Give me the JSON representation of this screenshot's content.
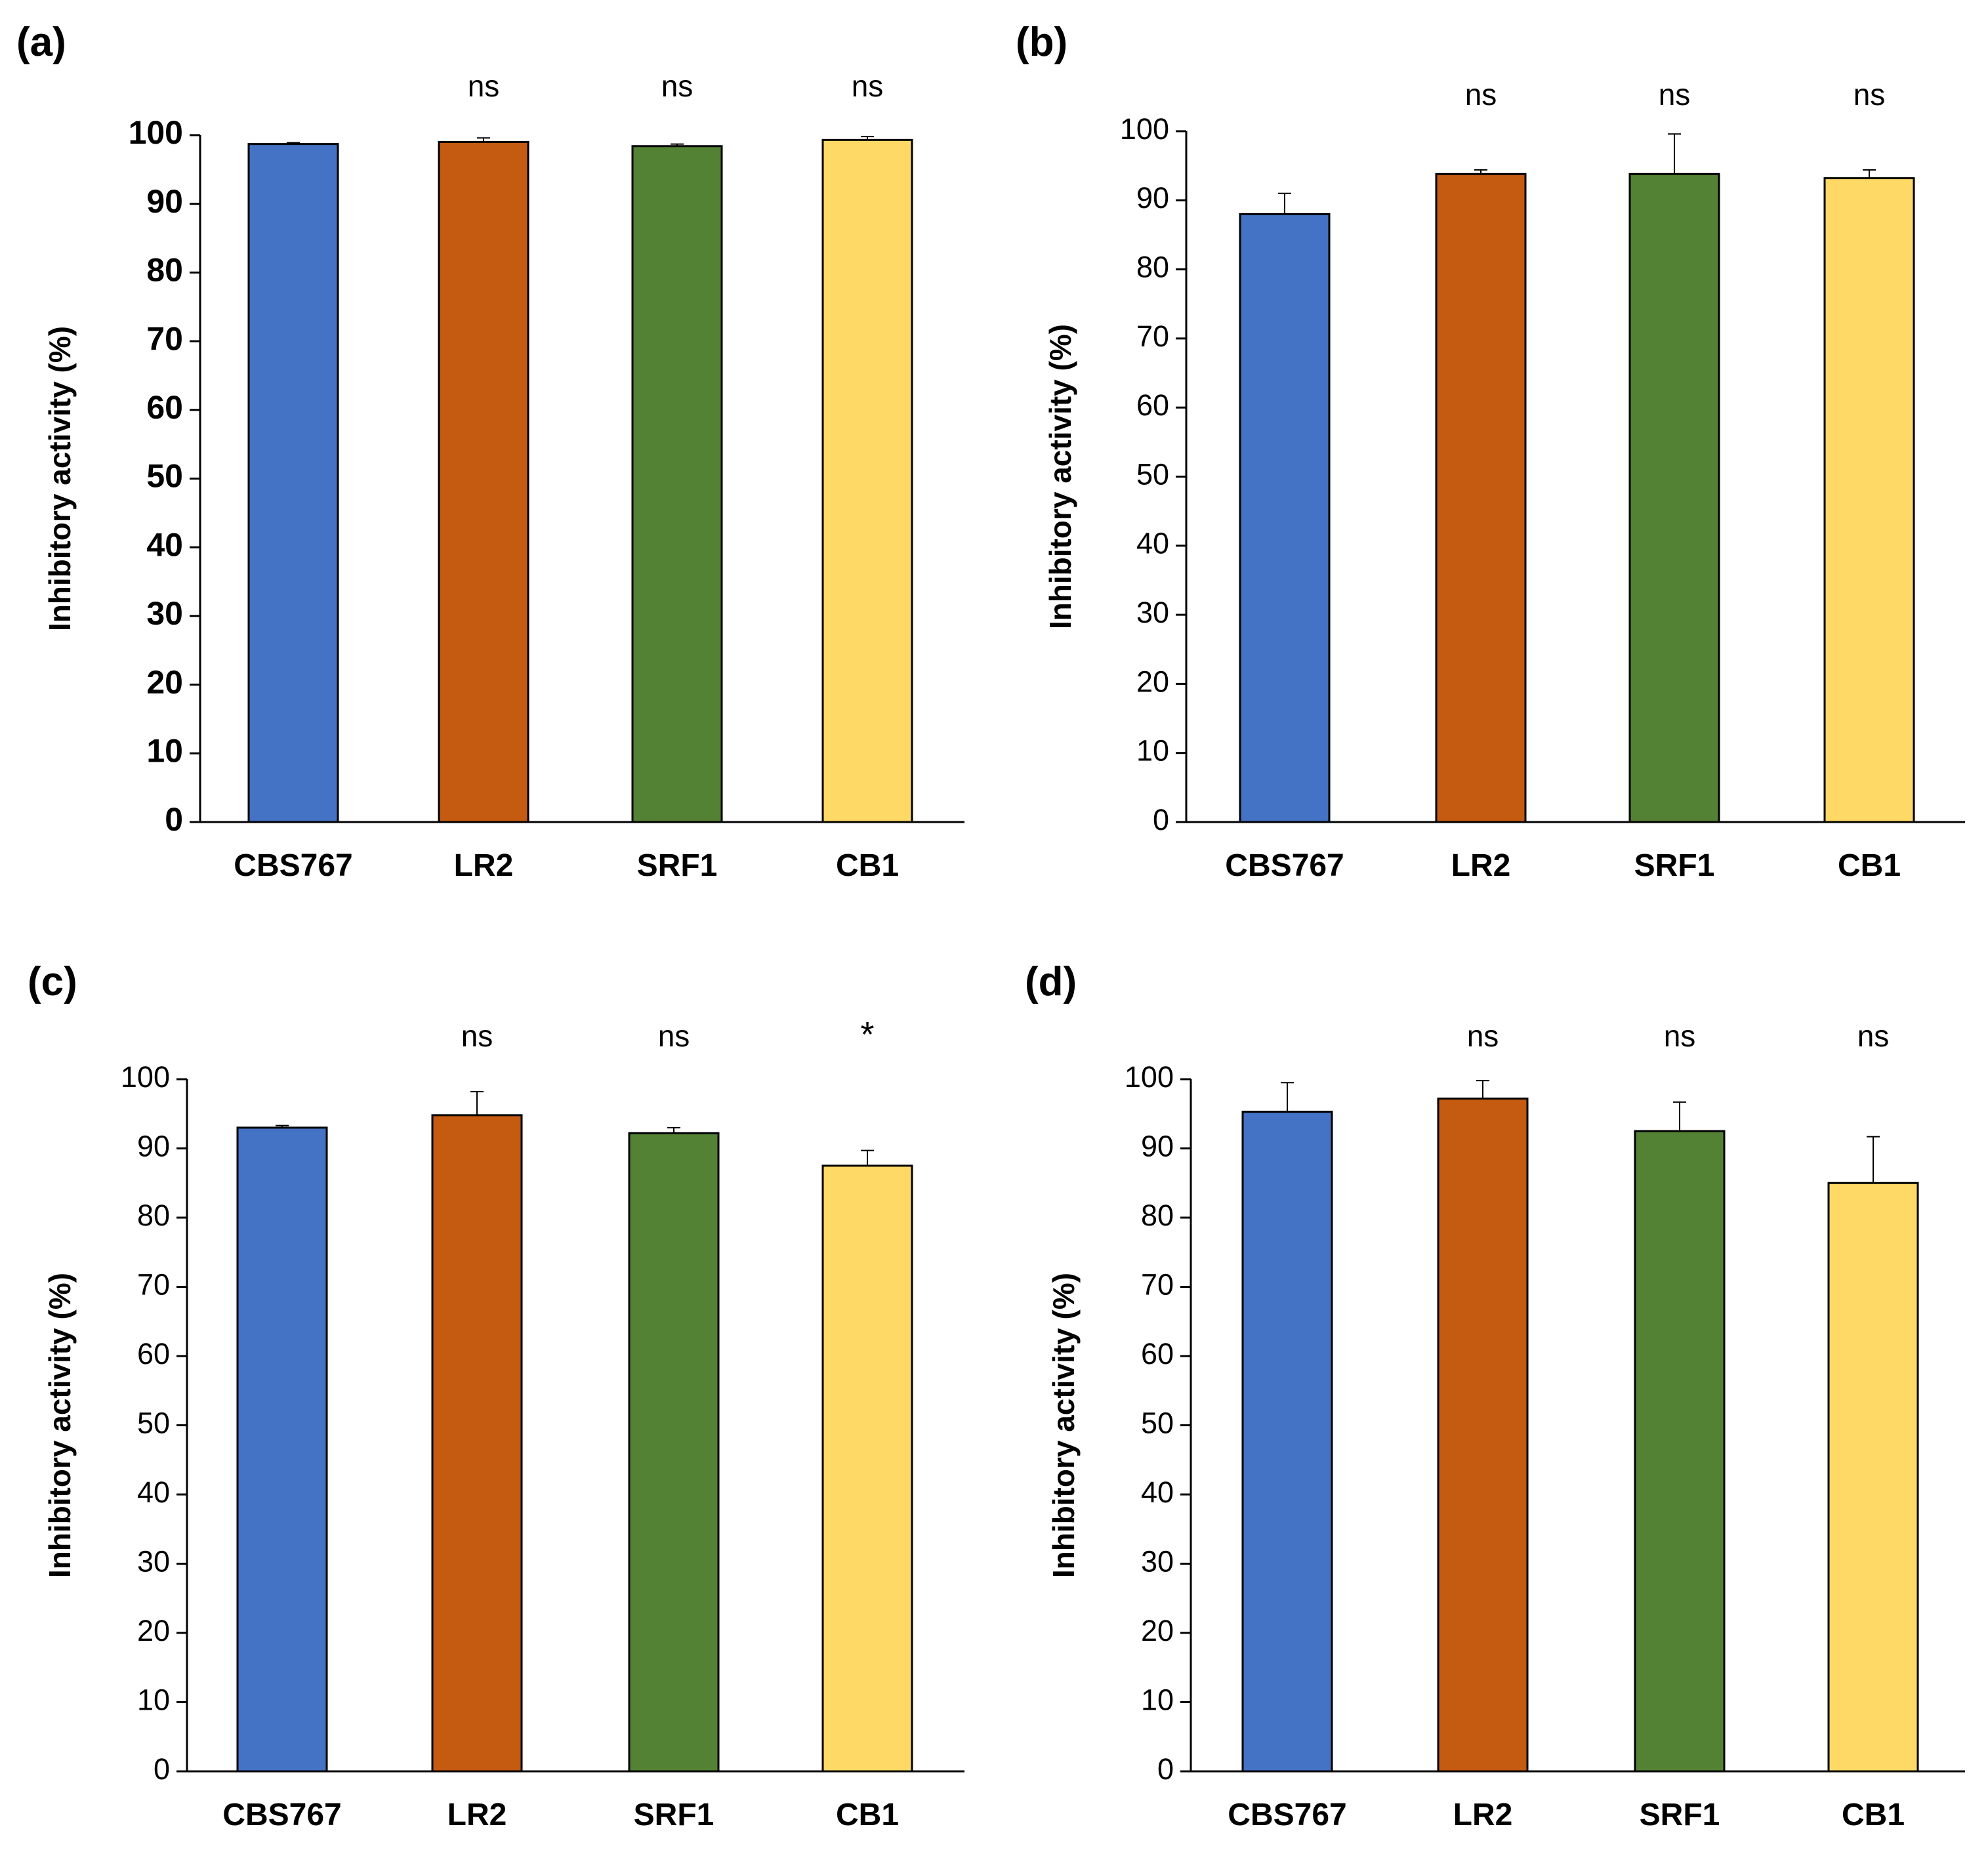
{
  "figure": {
    "colors": {
      "CBS767": "#4472C4",
      "LR2": "#C55A11",
      "SRF1": "#548235",
      "CB1": "#FFD966",
      "axis": "#000000",
      "text": "#000000"
    }
  },
  "chart_data": [
    {
      "type": "bar",
      "panel_label": "(a)",
      "categories": [
        "CBS767",
        "LR2",
        "SRF1",
        "CB1"
      ],
      "values": [
        98.7,
        99.0,
        98.4,
        99.3
      ],
      "errors": [
        0.2,
        0.6,
        0.3,
        0.5
      ],
      "significance": [
        "",
        "ns",
        "ns",
        "ns"
      ],
      "ylabel": "Inhibitory activity (%)",
      "xlabel": "",
      "ylim": [
        0,
        100
      ],
      "yticks": [
        "0",
        "10",
        "20",
        "30",
        "40",
        "50",
        "60",
        "70",
        "80",
        "90",
        "100"
      ],
      "tick_weight": "bold"
    },
    {
      "type": "bar",
      "panel_label": "(b)",
      "categories": [
        "CBS767",
        "LR2",
        "SRF1",
        "CB1"
      ],
      "values": [
        88.0,
        93.8,
        93.8,
        93.2
      ],
      "errors": [
        3.0,
        0.6,
        5.8,
        1.2
      ],
      "significance": [
        "",
        "ns",
        "ns",
        "ns"
      ],
      "ylabel": "Inhibitory activity (%)",
      "xlabel": "",
      "ylim": [
        0,
        100
      ],
      "yticks": [
        "0",
        "10",
        "20",
        "30",
        "40",
        "50",
        "60",
        "70",
        "80",
        "90",
        "100"
      ],
      "tick_weight": "normal"
    },
    {
      "type": "bar",
      "panel_label": "(c)",
      "categories": [
        "CBS767",
        "LR2",
        "SRF1",
        "CB1"
      ],
      "values": [
        93.0,
        94.8,
        92.2,
        87.5
      ],
      "errors": [
        0.3,
        3.4,
        0.8,
        2.2
      ],
      "significance": [
        "",
        "ns",
        "ns",
        "*"
      ],
      "ylabel": "Inhibitory activity (%)",
      "xlabel": "",
      "ylim": [
        0,
        100
      ],
      "yticks": [
        "0",
        "10",
        "20",
        "30",
        "40",
        "50",
        "60",
        "70",
        "80",
        "90",
        "100"
      ],
      "tick_weight": "normal"
    },
    {
      "type": "bar",
      "panel_label": "(d)",
      "categories": [
        "CBS767",
        "LR2",
        "SRF1",
        "CB1"
      ],
      "values": [
        95.3,
        97.2,
        92.5,
        85.0
      ],
      "errors": [
        4.2,
        2.6,
        4.2,
        6.7
      ],
      "significance": [
        "",
        "ns",
        "ns",
        "ns"
      ],
      "ylabel": "Inhibitory activity (%)",
      "xlabel": "",
      "ylim": [
        0,
        100
      ],
      "yticks": [
        "0",
        "10",
        "20",
        "30",
        "40",
        "50",
        "60",
        "70",
        "80",
        "90",
        "100"
      ],
      "tick_weight": "normal"
    }
  ]
}
